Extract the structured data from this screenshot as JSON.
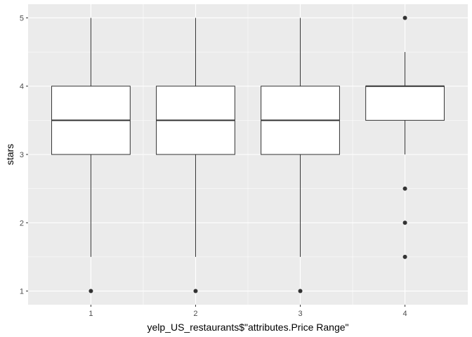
{
  "chart_data": {
    "type": "boxplot",
    "xlabel": "yelp_US_restaurants$\"attributes.Price Range\"",
    "ylabel": "stars",
    "categories": [
      "1",
      "2",
      "3",
      "4"
    ],
    "ylim": [
      0.8,
      5.2
    ],
    "y_ticks": [
      1,
      2,
      3,
      4,
      5
    ],
    "grid": true,
    "boxes": [
      {
        "category": "1",
        "whisker_low": 1.5,
        "q1": 3.0,
        "median": 3.5,
        "q3": 4.0,
        "whisker_high": 5.0,
        "outliers": [
          1.0
        ]
      },
      {
        "category": "2",
        "whisker_low": 1.5,
        "q1": 3.0,
        "median": 3.5,
        "q3": 4.0,
        "whisker_high": 5.0,
        "outliers": [
          1.0
        ]
      },
      {
        "category": "3",
        "whisker_low": 1.5,
        "q1": 3.0,
        "median": 3.5,
        "q3": 4.0,
        "whisker_high": 5.0,
        "outliers": [
          1.0
        ]
      },
      {
        "category": "4",
        "whisker_low": 3.0,
        "q1": 3.5,
        "median": 4.0,
        "q3": 4.0,
        "whisker_high": 4.5,
        "outliers": [
          5.0,
          2.5,
          2.0,
          1.5
        ]
      }
    ],
    "colors": {
      "panel_background": "#ebebeb",
      "grid_major": "#ffffff",
      "box_fill": "#ffffff",
      "box_line": "#333333",
      "outlier": "#333333",
      "tick_text": "#4d4d4d",
      "tick_mark": "#333333"
    }
  }
}
